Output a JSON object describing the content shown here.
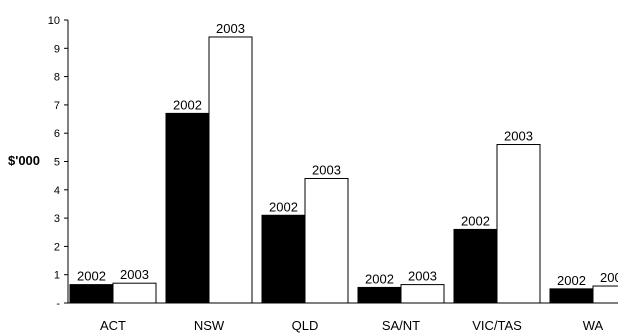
{
  "chart_data": {
    "type": "bar",
    "title": "",
    "xlabel": "",
    "ylabel": "$'000",
    "ylim": [
      0,
      10
    ],
    "yticks": [
      0,
      1,
      2,
      3,
      4,
      5,
      6,
      7,
      8,
      9,
      10
    ],
    "ytick_labels": [
      "-",
      "1",
      "2",
      "3",
      "4",
      "5",
      "6",
      "7",
      "8",
      "9",
      "10"
    ],
    "grid": false,
    "legend": "none",
    "categories": [
      "ACT",
      "NSW",
      "QLD",
      "SA/NT",
      "VIC/TAS",
      "WA"
    ],
    "series": [
      {
        "label": "2002",
        "color": "#000000",
        "values": [
          0.65,
          6.7,
          3.1,
          0.55,
          2.6,
          0.5
        ]
      },
      {
        "label": "2003",
        "color": "#ffffff",
        "values": [
          0.7,
          9.4,
          4.4,
          0.65,
          5.6,
          0.6
        ]
      }
    ]
  }
}
